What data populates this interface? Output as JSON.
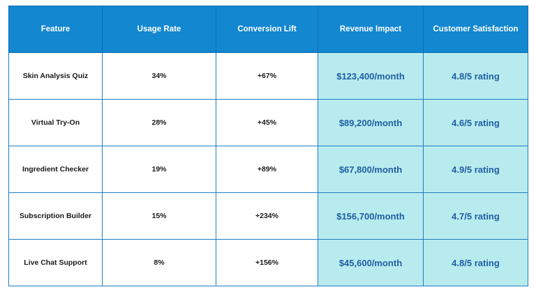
{
  "table": {
    "headers": [
      "Feature",
      "Usage Rate",
      "Conversion Lift",
      "Revenue Impact",
      "Customer Satisfaction"
    ],
    "rows": [
      [
        "Skin Analysis Quiz",
        "34%",
        "+67%",
        "$123,400/month",
        "4.8/5 rating"
      ],
      [
        "Virtual Try-On",
        "28%",
        "+45%",
        "$89,200/month",
        "4.6/5 rating"
      ],
      [
        "Ingredient Checker",
        "19%",
        "+89%",
        "$67,800/month",
        "4.9/5 rating"
      ],
      [
        "Subscription Builder",
        "15%",
        "+234%",
        "$156,700/month",
        "4.7/5 rating"
      ],
      [
        "Live Chat Support",
        "8%",
        "+156%",
        "$45,600/month",
        "4.8/5 rating"
      ]
    ]
  },
  "colors": {
    "header_bg": "#1387d0",
    "header_text": "#ffffff",
    "highlight_bg": "#b8ebee",
    "highlight_text": "#1f5ea3",
    "border": "#1f7cc0"
  }
}
